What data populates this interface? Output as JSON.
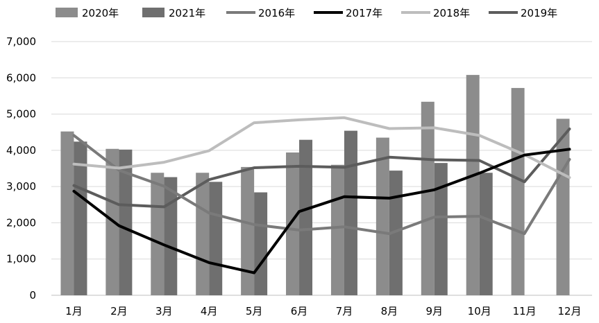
{
  "chart_data": {
    "type": "bar",
    "categories": [
      "1月",
      "2月",
      "3月",
      "4月",
      "5月",
      "6月",
      "7月",
      "8月",
      "9月",
      "10月",
      "11月",
      "12月"
    ],
    "ylim": [
      0,
      7000
    ],
    "yticks": [
      0,
      1000,
      2000,
      3000,
      4000,
      5000,
      6000,
      7000
    ],
    "ytick_labels": [
      "0",
      "1,000",
      "2,000",
      "3,000",
      "4,000",
      "5,000",
      "6,000",
      "7,000"
    ],
    "grid": true,
    "legend_position": "top",
    "bar_series": [
      {
        "name": "2020年",
        "color": "#8c8c8c",
        "values": [
          4520,
          4040,
          3380,
          3380,
          3540,
          3940,
          3600,
          4350,
          5340,
          6080,
          5720,
          4870
        ]
      },
      {
        "name": "2021年",
        "color": "#6f6f6f",
        "values": [
          4240,
          4020,
          3260,
          3130,
          2840,
          4290,
          4540,
          3440,
          3650,
          3380,
          null,
          null
        ]
      }
    ],
    "line_series": [
      {
        "name": "2016年",
        "color": "#7a7a7a",
        "values": [
          4410,
          3450,
          3010,
          2270,
          1950,
          1800,
          1890,
          1700,
          2160,
          2180,
          1700,
          3750
        ]
      },
      {
        "name": "2017年",
        "color": "#000000",
        "values": [
          2870,
          1920,
          1390,
          900,
          620,
          2310,
          2720,
          2680,
          2910,
          3370,
          3870,
          4030
        ]
      },
      {
        "name": "2018年",
        "color": "#bdbdbd",
        "values": [
          3620,
          3510,
          3670,
          3990,
          4760,
          4840,
          4900,
          4600,
          4620,
          4410,
          3880,
          3250
        ]
      },
      {
        "name": "2019年",
        "color": "#5c5c5c",
        "values": [
          3030,
          2500,
          2440,
          3190,
          3520,
          3560,
          3530,
          3810,
          3740,
          3720,
          3130,
          4590
        ]
      }
    ]
  }
}
